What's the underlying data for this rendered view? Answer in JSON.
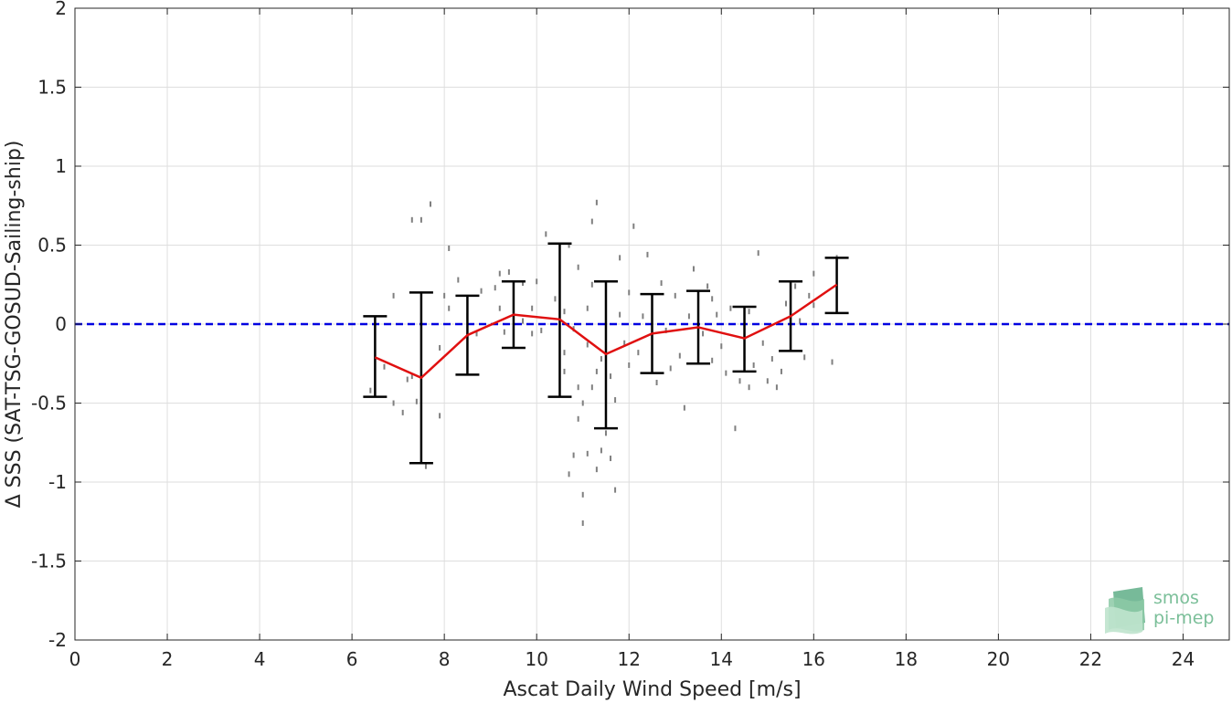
{
  "chart_data": {
    "type": "scatter",
    "xlabel": "Ascat Daily Wind Speed [m/s]",
    "ylabel": "Δ SSS (SAT-TSG-GOSUD-Sailing-ship)",
    "xlim": [
      0,
      25
    ],
    "ylim": [
      -2,
      2
    ],
    "xticks": [
      0,
      2,
      4,
      6,
      8,
      10,
      12,
      14,
      16,
      18,
      20,
      22,
      24
    ],
    "yticks": [
      2,
      1.5,
      1,
      0.5,
      0,
      -0.5,
      -1,
      -1.5,
      -2
    ],
    "xtick_labels": [
      "0",
      "2",
      "4",
      "6",
      "8",
      "10",
      "12",
      "14",
      "16",
      "18",
      "20",
      "22",
      "24"
    ],
    "ytick_labels": [
      "2",
      "1.5",
      "1",
      "0.5",
      "0",
      "-0.5",
      "-1",
      "-1.5",
      "-2"
    ],
    "grid": true,
    "reference_line": {
      "y": 0,
      "style": "dashed",
      "color": "#0000e0"
    },
    "mean_line": {
      "name": "",
      "color": "#e01010",
      "x": [
        6.5,
        7.5,
        8.5,
        9.5,
        10.5,
        11.5,
        12.5,
        13.5,
        14.5,
        15.5,
        16.5
      ],
      "y": [
        -0.21,
        -0.34,
        -0.07,
        0.06,
        0.03,
        -0.19,
        -0.06,
        -0.02,
        -0.09,
        0.05,
        0.25
      ],
      "upper": [
        0.05,
        0.2,
        0.18,
        0.27,
        0.51,
        0.27,
        0.19,
        0.21,
        0.11,
        0.27,
        0.42
      ],
      "lower": [
        -0.46,
        -0.88,
        -0.32,
        -0.15,
        -0.46,
        -0.66,
        -0.31,
        -0.25,
        -0.3,
        -0.17,
        0.07
      ]
    },
    "scatter": {
      "color": "#7f7f7f",
      "points": [
        [
          6.4,
          -0.42
        ],
        [
          6.7,
          -0.27
        ],
        [
          6.9,
          0.18
        ],
        [
          6.9,
          -0.5
        ],
        [
          7.1,
          -0.56
        ],
        [
          7.2,
          -0.35
        ],
        [
          7.3,
          -0.33
        ],
        [
          7.3,
          0.66
        ],
        [
          7.4,
          -0.49
        ],
        [
          7.5,
          0.66
        ],
        [
          7.6,
          -0.9
        ],
        [
          7.7,
          0.76
        ],
        [
          7.9,
          -0.58
        ],
        [
          7.9,
          -0.15
        ],
        [
          8.0,
          0.18
        ],
        [
          8.1,
          0.1
        ],
        [
          8.1,
          0.48
        ],
        [
          8.3,
          0.28
        ],
        [
          8.5,
          0.05
        ],
        [
          8.5,
          -0.07
        ],
        [
          8.7,
          -0.06
        ],
        [
          8.8,
          0.21
        ],
        [
          9.1,
          0.23
        ],
        [
          9.2,
          0.1
        ],
        [
          9.2,
          0.32
        ],
        [
          9.3,
          -0.05
        ],
        [
          9.4,
          0.33
        ],
        [
          9.5,
          0.06
        ],
        [
          9.7,
          0.02
        ],
        [
          9.7,
          0.26
        ],
        [
          9.9,
          -0.06
        ],
        [
          9.9,
          0.1
        ],
        [
          10.0,
          0.27
        ],
        [
          10.1,
          -0.04
        ],
        [
          10.2,
          0.57
        ],
        [
          10.4,
          0.16
        ],
        [
          10.5,
          0.35
        ],
        [
          10.6,
          -0.18
        ],
        [
          10.6,
          0.08
        ],
        [
          10.6,
          -0.3
        ],
        [
          10.7,
          -0.95
        ],
        [
          10.7,
          0.5
        ],
        [
          10.8,
          -0.83
        ],
        [
          10.8,
          -0.03
        ],
        [
          10.9,
          -0.4
        ],
        [
          10.9,
          0.36
        ],
        [
          10.9,
          -0.6
        ],
        [
          11.0,
          -1.26
        ],
        [
          11.0,
          -1.08
        ],
        [
          11.0,
          -0.5
        ],
        [
          11.1,
          -0.13
        ],
        [
          11.1,
          0.1
        ],
        [
          11.1,
          -0.82
        ],
        [
          11.2,
          0.65
        ],
        [
          11.2,
          -0.4
        ],
        [
          11.2,
          0.25
        ],
        [
          11.3,
          0.77
        ],
        [
          11.3,
          -0.92
        ],
        [
          11.3,
          -0.3
        ],
        [
          11.4,
          -0.8
        ],
        [
          11.4,
          -0.22
        ],
        [
          11.5,
          -0.69
        ],
        [
          11.5,
          0.13
        ],
        [
          11.5,
          -0.55
        ],
        [
          11.6,
          -0.85
        ],
        [
          11.6,
          -0.33
        ],
        [
          11.7,
          -0.48
        ],
        [
          11.7,
          -1.05
        ],
        [
          11.8,
          0.06
        ],
        [
          11.8,
          0.42
        ],
        [
          11.9,
          -0.12
        ],
        [
          12.0,
          0.2
        ],
        [
          12.0,
          -0.26
        ],
        [
          12.1,
          0.62
        ],
        [
          12.2,
          -0.18
        ],
        [
          12.3,
          0.05
        ],
        [
          12.4,
          0.44
        ],
        [
          12.5,
          -0.1
        ],
        [
          12.6,
          -0.37
        ],
        [
          12.7,
          0.26
        ],
        [
          12.8,
          -0.04
        ],
        [
          12.9,
          -0.28
        ],
        [
          13.0,
          0.18
        ],
        [
          13.1,
          -0.2
        ],
        [
          13.2,
          -0.53
        ],
        [
          13.3,
          0.05
        ],
        [
          13.4,
          0.35
        ],
        [
          13.5,
          -0.15
        ],
        [
          13.6,
          -0.06
        ],
        [
          13.7,
          0.24
        ],
        [
          13.8,
          -0.23
        ],
        [
          13.8,
          0.16
        ],
        [
          13.9,
          0.06
        ],
        [
          14.0,
          -0.14
        ],
        [
          14.1,
          -0.31
        ],
        [
          14.2,
          0.1
        ],
        [
          14.3,
          -0.66
        ],
        [
          14.4,
          -0.36
        ],
        [
          14.5,
          -0.22
        ],
        [
          14.6,
          0.08
        ],
        [
          14.6,
          -0.4
        ],
        [
          14.7,
          -0.26
        ],
        [
          14.8,
          0.45
        ],
        [
          14.9,
          -0.12
        ],
        [
          15.0,
          -0.36
        ],
        [
          15.1,
          -0.22
        ],
        [
          15.2,
          -0.4
        ],
        [
          15.3,
          -0.3
        ],
        [
          15.4,
          0.13
        ],
        [
          15.6,
          0.24
        ],
        [
          15.7,
          0.02
        ],
        [
          15.8,
          -0.21
        ],
        [
          15.9,
          0.18
        ],
        [
          16.0,
          0.12
        ],
        [
          16.0,
          0.32
        ],
        [
          16.4,
          -0.24
        ],
        [
          16.5,
          0.42
        ]
      ]
    }
  },
  "logo": {
    "line1": "smos",
    "line2": "pi-mep"
  }
}
